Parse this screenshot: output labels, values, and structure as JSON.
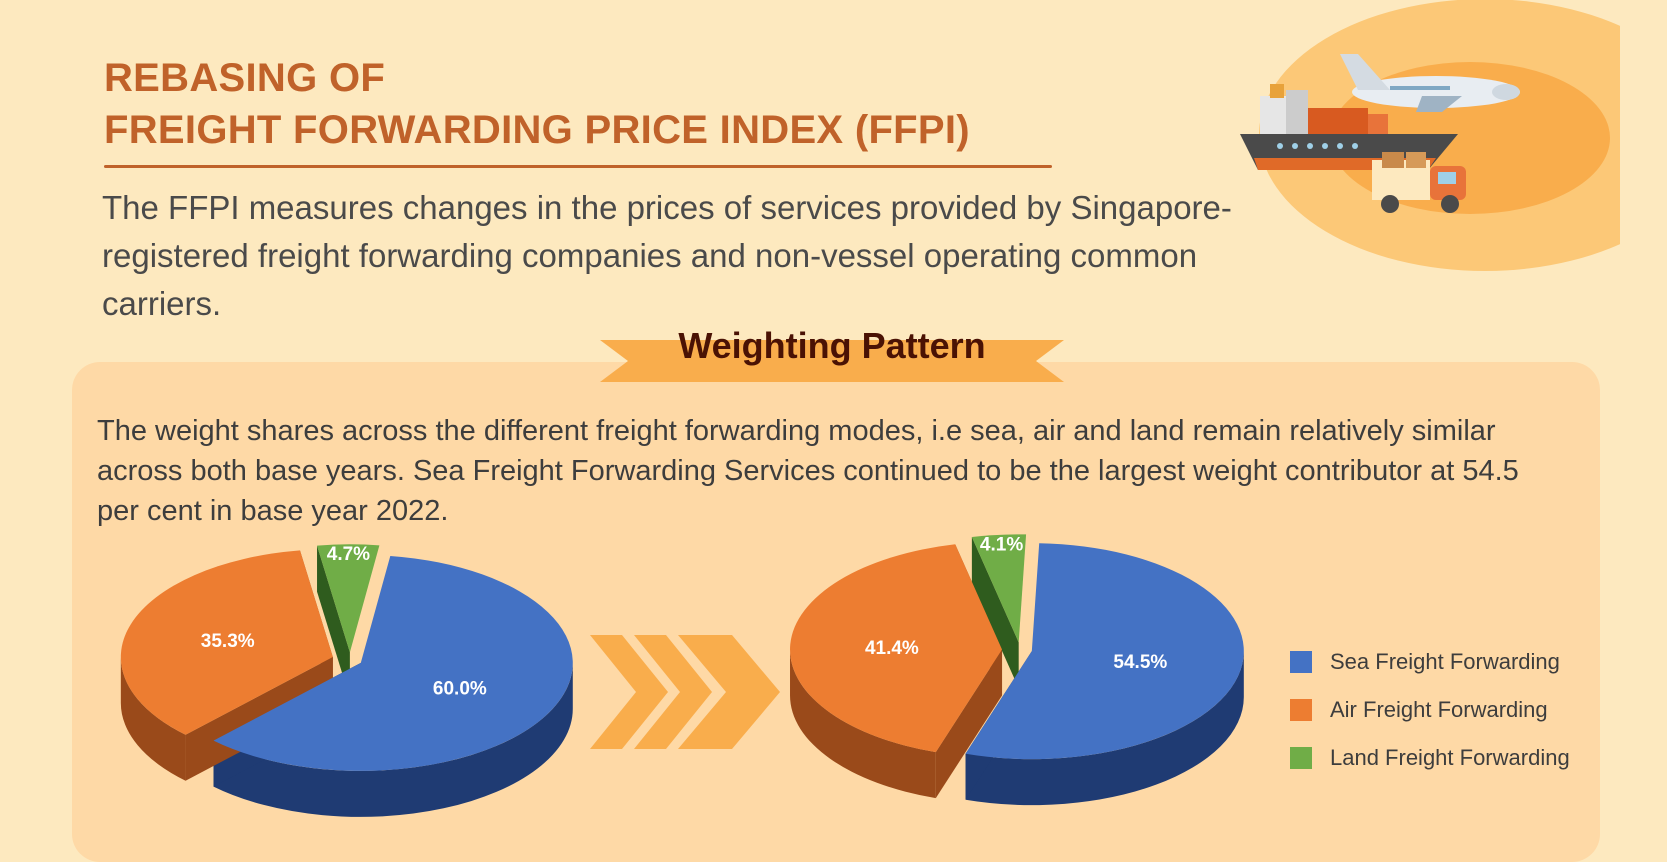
{
  "header": {
    "title_line1": "REBASING OF",
    "title_line2": "FREIGHT FORWARDING PRICE INDEX (FFPI)",
    "intro": "The FFPI measures changes in the prices of services provided by Singapore-registered freight forwarding companies and non-vessel operating common carriers."
  },
  "section": {
    "heading": "Weighting Pattern",
    "description": "The weight  shares across the different freight  forwarding modes, i.e sea, air and land remain relatively similar  across  both  base  years.  Sea Freight Forwarding Services  continued to be the largest weight contributor at 54.5 per cent in base year 2022."
  },
  "icons": {
    "hero": "cargo-ship-airplane-truck-illustration",
    "arrow": "triple-chevron-right-icon"
  },
  "colors": {
    "sea": "#4472c4",
    "air": "#ed7d31",
    "land": "#70ad47",
    "title": "#c0622a",
    "ribbon": "#f9ad4c"
  },
  "chart_data": [
    {
      "type": "pie",
      "categories": [
        "Sea Freight Forwarding",
        "Air Freight Forwarding",
        "Land Freight Forwarding"
      ],
      "values": [
        60.0,
        35.3,
        4.7
      ],
      "labels": [
        "60.0%",
        "35.3%",
        "4.7%"
      ]
    },
    {
      "type": "pie",
      "categories": [
        "Sea Freight Forwarding",
        "Air Freight Forwarding",
        "Land Freight Forwarding"
      ],
      "values": [
        54.5,
        41.4,
        4.1
      ],
      "labels": [
        "54.5%",
        "41.4%",
        "4.1%"
      ]
    }
  ],
  "legend": {
    "placement": "right",
    "items": [
      {
        "label": "Sea Freight Forwarding",
        "color": "#4472c4"
      },
      {
        "label": "Air Freight Forwarding",
        "color": "#ed7d31"
      },
      {
        "label": "Land Freight Forwarding",
        "color": "#70ad47"
      }
    ]
  }
}
